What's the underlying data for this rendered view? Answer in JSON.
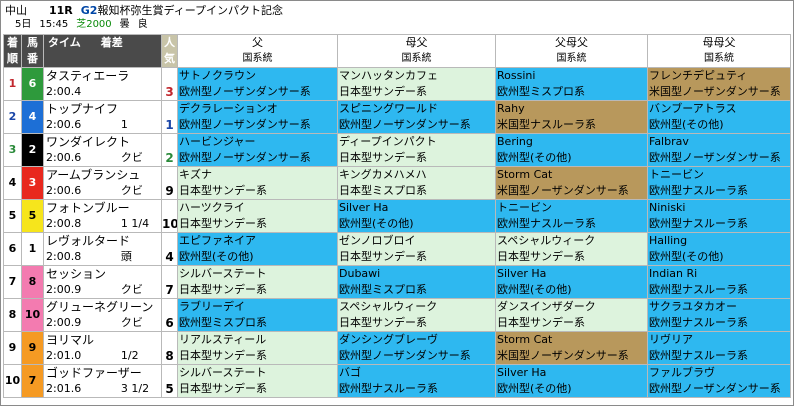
{
  "header": {
    "course": "中山",
    "race_no": "11R",
    "grade": "G2",
    "race_name": "報知杯弥生賞ディープインパクト記念",
    "day": "5日",
    "time": "15:45",
    "surface": "芝2000",
    "weather": "曇",
    "going": "良"
  },
  "columns": {
    "rank_top": "着",
    "rank_bottom": "順",
    "post_top": "馬",
    "post_bottom": "番",
    "time": "タイム",
    "margin": "着差",
    "pop_top": "人",
    "pop_bottom": "気",
    "sire_top": "父",
    "sire_bottom": "国系統",
    "dam_top": "母父",
    "dam_bottom": "国系統",
    "sire_sire_top": "父母父",
    "sire_sire_bottom": "国系統",
    "dam_dam_top": "母母父",
    "dam_dam_bottom": "国系統"
  },
  "rows": [
    {
      "rank": "1",
      "post": "6",
      "name": "タスティエーラ",
      "time": "2:00.4",
      "margin": "",
      "pop": "3",
      "sire": "サトノクラウン",
      "sire_line": "欧州型ノーザンダンサー系",
      "damsire": "マンハッタンカフェ",
      "damsire_line": "日本型サンデー系",
      "ssire": "Rossini",
      "ssire_line": "欧州型ミスプロ系",
      "dsire": "フレンチデピュティ",
      "dsire_line": "米国型ノーザンダンサー系"
    },
    {
      "rank": "2",
      "post": "4",
      "name": "トップナイフ",
      "time": "2:00.6",
      "margin": "1",
      "pop": "1",
      "sire": "デクラレーションオ",
      "sire_line": "欧州型ノーザンダンサー系",
      "damsire": "スピニングワールド",
      "damsire_line": "欧州型ノーザンダンサー系",
      "ssire": "Rahy",
      "ssire_line": "米国型ナスルーラ系",
      "dsire": "バンブーアトラス",
      "dsire_line": "欧州型(その他)"
    },
    {
      "rank": "3",
      "post": "2",
      "name": "ワンダイレクト",
      "time": "2:00.6",
      "margin": "クビ",
      "pop": "2",
      "sire": "ハービンジャー",
      "sire_line": "欧州型ノーザンダンサー系",
      "damsire": "ディープインパクト",
      "damsire_line": "日本型サンデー系",
      "ssire": "Bering",
      "ssire_line": "欧州型(その他)",
      "dsire": "Falbrav",
      "dsire_line": "欧州型ノーザンダンサー系"
    },
    {
      "rank": "4",
      "post": "3",
      "name": "アームブランシュ",
      "time": "2:00.6",
      "margin": "クビ",
      "pop": "9",
      "sire": "キズナ",
      "sire_line": "日本型サンデー系",
      "damsire": "キングカメハメハ",
      "damsire_line": "日本型ミスプロ系",
      "ssire": "Storm Cat",
      "ssire_line": "米国型ノーザンダンサー系",
      "dsire": "トニービン",
      "dsire_line": "欧州型ナスルーラ系"
    },
    {
      "rank": "5",
      "post": "5",
      "name": "フォトンブルー",
      "time": "2:00.8",
      "margin": "1 1/4",
      "pop": "10",
      "sire": "ハーツクライ",
      "sire_line": "日本型サンデー系",
      "damsire": "Silver Ha",
      "damsire_line": "欧州型(その他)",
      "ssire": "トニービン",
      "ssire_line": "欧州型ナスルーラ系",
      "dsire": "Niniski",
      "dsire_line": "欧州型ナスルーラ系"
    },
    {
      "rank": "6",
      "post": "1",
      "name": "レヴォルタード",
      "time": "2:00.8",
      "margin": "頭",
      "pop": "4",
      "sire": "エピファネイア",
      "sire_line": "欧州型(その他)",
      "damsire": "ゼンノロブロイ",
      "damsire_line": "日本型サンデー系",
      "ssire": "スペシャルウィーク",
      "ssire_line": "日本型サンデー系",
      "dsire": "Halling",
      "dsire_line": "欧州型(その他)"
    },
    {
      "rank": "7",
      "post": "8",
      "name": "セッション",
      "time": "2:00.9",
      "margin": "クビ",
      "pop": "7",
      "sire": "シルバーステート",
      "sire_line": "日本型サンデー系",
      "damsire": "Dubawi",
      "damsire_line": "欧州型ミスプロ系",
      "ssire": "Silver Ha",
      "ssire_line": "欧州型(その他)",
      "dsire": "Indian Ri",
      "dsire_line": "欧州型ナスルーラ系"
    },
    {
      "rank": "8",
      "post": "10",
      "name": "グリューネグリーン",
      "time": "2:00.9",
      "margin": "クビ",
      "pop": "6",
      "sire": "ラブリーデイ",
      "sire_line": "欧州型ミスプロ系",
      "damsire": "スペシャルウィーク",
      "damsire_line": "日本型サンデー系",
      "ssire": "ダンスインザダーク",
      "ssire_line": "日本型サンデー系",
      "dsire": "サクラユタカオー",
      "dsire_line": "欧州型ナスルーラ系"
    },
    {
      "rank": "9",
      "post": "9",
      "name": "ヨリマル",
      "time": "2:01.0",
      "margin": "1/2",
      "pop": "8",
      "sire": "リアルスティール",
      "sire_line": "日本型サンデー系",
      "damsire": "ダンシングブレーヴ",
      "damsire_line": "欧州型ノーザンダンサー系",
      "ssire": "Storm Cat",
      "ssire_line": "米国型ノーザンダンサー系",
      "dsire": "リヴリア",
      "dsire_line": "欧州型ナスルーラ系"
    },
    {
      "rank": "10",
      "post": "7",
      "name": "ゴッドファーザー",
      "time": "2:01.6",
      "margin": "3 1/2",
      "pop": "5",
      "sire": "シルバーステート",
      "sire_line": "日本型サンデー系",
      "damsire": "バゴ",
      "damsire_line": "欧州型ナスルーラ系",
      "ssire": "Silver Ha",
      "ssire_line": "欧州型(その他)",
      "dsire": "ファルブラヴ",
      "dsire_line": "欧州型ノーザンダンサー系"
    }
  ],
  "styles": {
    "post_colors": {
      "1": "#ffffff",
      "2": "#000000",
      "3": "#e8281e",
      "4": "#1d6fd6",
      "5": "#f6e51c",
      "6": "#2e9a3c",
      "7": "#f59a23",
      "8": "#f37bb0",
      "9": "#f59a23",
      "10": "#f37bb0"
    },
    "line_colors": {
      "sunday": "#ddf3dd",
      "euro": "#2eb8f0",
      "usa": "#b8985c"
    }
  }
}
